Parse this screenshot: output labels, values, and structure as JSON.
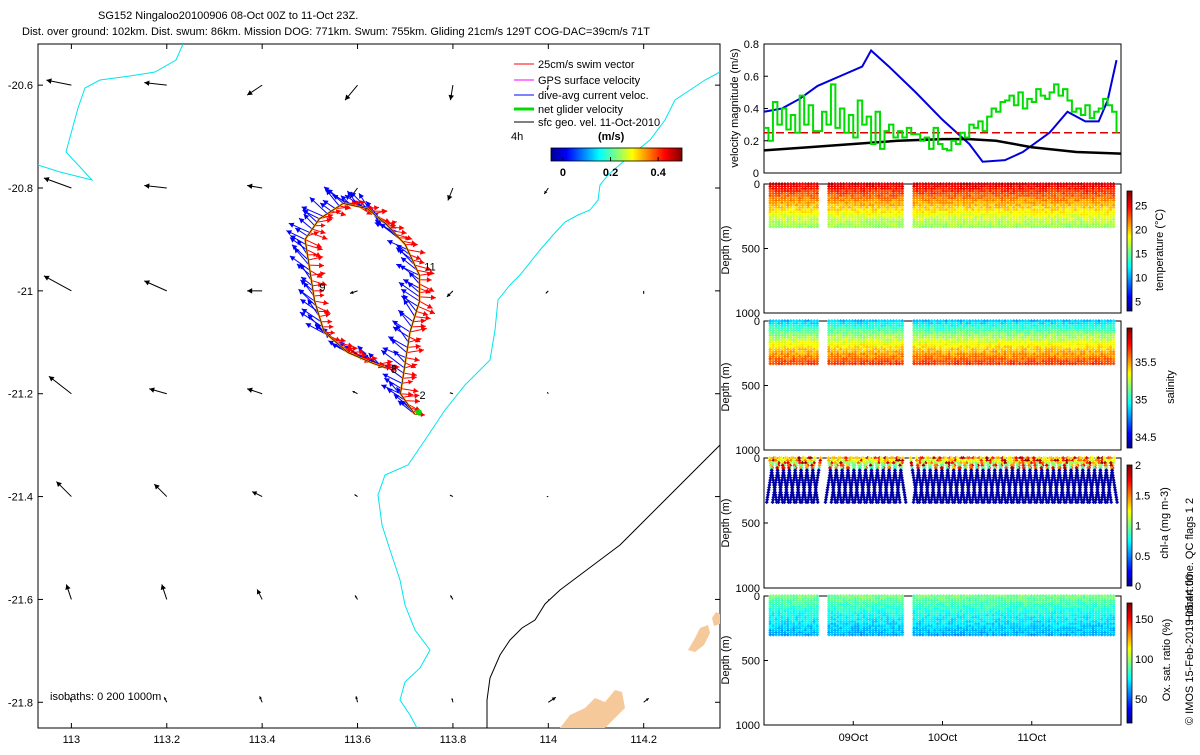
{
  "header": {
    "line1": "SG152 Ningaloo20100906 08-Oct 00Z to 11-Oct 23Z.",
    "line2": "Dist. over ground: 102km. Dist. swum: 86km. Mission DOG: 771km. Swum: 755km. Gliding 21cm/s 129T COG-DAC=39cm/s 71T"
  },
  "colors": {
    "swim": "#ff0000",
    "gps": "#ff00ff",
    "dac": "#0000ff",
    "net": "#00dd00",
    "sfc": "#000000",
    "isobath": "#00e5ee",
    "coast": "#000000",
    "land": "#f6c99b"
  },
  "chart_data": [
    {
      "type": "scatter",
      "subtype": "map-vector",
      "title": "SG152 Ningaloo20100906 08-Oct 00Z to 11-Oct 23Z.",
      "xlim": [
        112.93,
        114.36
      ],
      "ylim": [
        -21.85,
        -20.52
      ],
      "xticks": [
        113,
        113.2,
        113.4,
        113.6,
        113.8,
        114,
        114.2
      ],
      "xtick_labels": [
        "113",
        "113.2",
        "113.4",
        "113.6",
        "113.8",
        "114",
        "114.2"
      ],
      "yticks": [
        -20.6,
        -20.8,
        -21,
        -21.2,
        -21.4,
        -21.6,
        -21.8
      ],
      "ytick_labels": [
        "-20.6",
        "-20.8",
        "-21",
        "-21.2",
        "-21.4",
        "-21.6",
        "-21.8"
      ],
      "legend": {
        "position": "top-right",
        "entries": [
          {
            "label": "25cm/s swim vector",
            "color": "#ff0000"
          },
          {
            "label": "GPS surface velocity",
            "color": "#ff00ff"
          },
          {
            "label": "dive-avg current veloc.",
            "color": "#0000ff"
          },
          {
            "label": "net glider velocity",
            "color": "#00dd00"
          },
          {
            "label": "sfc geo. vel. 11-Oct-2010",
            "color": "#000000"
          }
        ],
        "interval_label": "4h",
        "colorbar_title": "(m/s)",
        "colorbar_ticks": [
          "0",
          "0.2",
          "0.4"
        ],
        "colorbar_range": [
          -0.05,
          0.5
        ]
      },
      "isobaths_label": "isobaths: 0   200  1000m",
      "day_labels": [
        {
          "text": "11",
          "lon": 113.74,
          "lat": -20.96
        },
        {
          "text": "9",
          "lon": 113.52,
          "lat": -21.0
        },
        {
          "text": "8",
          "lon": 113.67,
          "lat": -21.16
        },
        {
          "text": "2",
          "lon": 113.73,
          "lat": -21.21
        }
      ],
      "track": [
        [
          113.72,
          -21.24
        ],
        [
          113.69,
          -21.2
        ],
        [
          113.7,
          -21.14
        ],
        [
          113.71,
          -21.08
        ],
        [
          113.73,
          -21.02
        ],
        [
          113.73,
          -20.97
        ],
        [
          113.7,
          -20.91
        ],
        [
          113.66,
          -20.87
        ],
        [
          113.62,
          -20.84
        ],
        [
          113.57,
          -20.83
        ],
        [
          113.52,
          -20.86
        ],
        [
          113.49,
          -20.9
        ],
        [
          113.5,
          -20.96
        ],
        [
          113.51,
          -21.02
        ],
        [
          113.53,
          -21.08
        ],
        [
          113.58,
          -21.12
        ],
        [
          113.63,
          -21.14
        ],
        [
          113.66,
          -21.15
        ]
      ],
      "sfc_vectors": [
        {
          "lon": 113.0,
          "lat": -20.6,
          "u": -0.5,
          "v": 0.1
        },
        {
          "lon": 113.2,
          "lat": -20.6,
          "u": -0.45,
          "v": 0.05
        },
        {
          "lon": 113.4,
          "lat": -20.6,
          "u": -0.3,
          "v": -0.2
        },
        {
          "lon": 113.6,
          "lat": -20.6,
          "u": -0.25,
          "v": -0.3
        },
        {
          "lon": 113.8,
          "lat": -20.6,
          "u": -0.05,
          "v": -0.3
        },
        {
          "lon": 114.0,
          "lat": -20.6,
          "u": -0.02,
          "v": -0.1
        },
        {
          "lon": 113.0,
          "lat": -20.8,
          "u": -0.55,
          "v": 0.2
        },
        {
          "lon": 113.2,
          "lat": -20.8,
          "u": -0.45,
          "v": 0.05
        },
        {
          "lon": 113.4,
          "lat": -20.8,
          "u": -0.3,
          "v": 0.05
        },
        {
          "lon": 113.6,
          "lat": -20.8,
          "u": -0.15,
          "v": -0.2
        },
        {
          "lon": 113.8,
          "lat": -20.8,
          "u": -0.1,
          "v": -0.25
        },
        {
          "lon": 114.0,
          "lat": -20.8,
          "u": -0.08,
          "v": -0.12
        },
        {
          "lon": 113.0,
          "lat": -21.0,
          "u": -0.55,
          "v": 0.3
        },
        {
          "lon": 113.2,
          "lat": -21.0,
          "u": -0.45,
          "v": 0.2
        },
        {
          "lon": 113.4,
          "lat": -21.0,
          "u": -0.3,
          "v": 0.0
        },
        {
          "lon": 113.6,
          "lat": -21.0,
          "u": -0.15,
          "v": -0.05
        },
        {
          "lon": 113.8,
          "lat": -21.0,
          "u": -0.12,
          "v": -0.12
        },
        {
          "lon": 114.0,
          "lat": -21.0,
          "u": -0.05,
          "v": -0.05
        },
        {
          "lon": 114.2,
          "lat": -21.0,
          "u": 0.0,
          "v": -0.06
        },
        {
          "lon": 113.0,
          "lat": -21.2,
          "u": -0.45,
          "v": 0.35
        },
        {
          "lon": 113.2,
          "lat": -21.2,
          "u": -0.35,
          "v": 0.1
        },
        {
          "lon": 113.4,
          "lat": -21.2,
          "u": -0.3,
          "v": 0.1
        },
        {
          "lon": 113.6,
          "lat": -21.2,
          "u": -0.1,
          "v": 0.05
        },
        {
          "lon": 113.8,
          "lat": -21.2,
          "u": -0.06,
          "v": 0.02
        },
        {
          "lon": 114.0,
          "lat": -21.2,
          "u": -0.02,
          "v": 0.03
        },
        {
          "lon": 113.0,
          "lat": -21.4,
          "u": -0.3,
          "v": 0.3
        },
        {
          "lon": 113.2,
          "lat": -21.4,
          "u": -0.25,
          "v": 0.25
        },
        {
          "lon": 113.4,
          "lat": -21.4,
          "u": -0.2,
          "v": 0.1
        },
        {
          "lon": 113.6,
          "lat": -21.4,
          "u": -0.06,
          "v": 0.04
        },
        {
          "lon": 113.8,
          "lat": -21.4,
          "u": -0.06,
          "v": 0.03
        },
        {
          "lon": 114.0,
          "lat": -21.4,
          "u": -0.03,
          "v": 0.0
        },
        {
          "lon": 113.0,
          "lat": -21.6,
          "u": -0.1,
          "v": 0.3
        },
        {
          "lon": 113.2,
          "lat": -21.6,
          "u": -0.1,
          "v": 0.3
        },
        {
          "lon": 113.4,
          "lat": -21.6,
          "u": -0.1,
          "v": 0.2
        },
        {
          "lon": 113.6,
          "lat": -21.6,
          "u": -0.05,
          "v": 0.08
        },
        {
          "lon": 113.8,
          "lat": -21.6,
          "u": -0.05,
          "v": 0.08
        },
        {
          "lon": 114.0,
          "lat": -21.6,
          "u": 0.02,
          "v": -0.02
        },
        {
          "lon": 113.0,
          "lat": -21.8,
          "u": -0.02,
          "v": 0.08
        },
        {
          "lon": 113.2,
          "lat": -21.8,
          "u": -0.05,
          "v": 0.1
        },
        {
          "lon": 113.4,
          "lat": -21.8,
          "u": -0.05,
          "v": 0.12
        },
        {
          "lon": 113.6,
          "lat": -21.8,
          "u": -0.03,
          "v": 0.12
        },
        {
          "lon": 113.8,
          "lat": -21.8,
          "u": -0.02,
          "v": 0.08
        },
        {
          "lon": 114.0,
          "lat": -21.8,
          "u": 0.15,
          "v": 0.1
        },
        {
          "lon": 114.2,
          "lat": -21.8,
          "u": 0.1,
          "v": 0.08
        }
      ]
    },
    {
      "type": "line",
      "ylabel": "velocity magnitude (m/s)",
      "ylim": [
        0,
        0.8
      ],
      "yticks": [
        "0",
        "0.2",
        "0.4",
        "0.6",
        "0.8"
      ],
      "xlim_days": [
        0,
        4
      ],
      "series": [
        {
          "name": "blue",
          "color": "#0000dd",
          "x": [
            0,
            0.2,
            0.4,
            0.6,
            0.85,
            1.1,
            1.2,
            1.4,
            1.7,
            2.0,
            2.3,
            2.45,
            2.7,
            2.9,
            3.2,
            3.4,
            3.6,
            3.75,
            3.85,
            3.95
          ],
          "y": [
            0.38,
            0.4,
            0.46,
            0.54,
            0.6,
            0.66,
            0.76,
            0.66,
            0.5,
            0.33,
            0.18,
            0.07,
            0.08,
            0.13,
            0.25,
            0.38,
            0.32,
            0.32,
            0.45,
            0.7
          ]
        },
        {
          "name": "black",
          "color": "#000000",
          "x": [
            0,
            0.5,
            1.0,
            1.5,
            2.0,
            2.3,
            2.6,
            3.0,
            3.5,
            4.0
          ],
          "y": [
            0.14,
            0.16,
            0.18,
            0.2,
            0.21,
            0.21,
            0.2,
            0.16,
            0.13,
            0.12
          ]
        },
        {
          "name": "red-dashed",
          "color": "#dd0000",
          "x": [
            0,
            4
          ],
          "y": [
            0.25,
            0.25
          ]
        },
        {
          "name": "green",
          "color": "#00dd00",
          "x": [
            0,
            0.05,
            0.1,
            0.15,
            0.2,
            0.25,
            0.3,
            0.35,
            0.4,
            0.45,
            0.5,
            0.55,
            0.6,
            0.65,
            0.7,
            0.75,
            0.8,
            0.85,
            0.9,
            0.95,
            1.0,
            1.05,
            1.1,
            1.15,
            1.2,
            1.25,
            1.3,
            1.35,
            1.4,
            1.45,
            1.5,
            1.55,
            1.6,
            1.65,
            1.7,
            1.75,
            1.8,
            1.85,
            1.9,
            1.95,
            2.0,
            2.05,
            2.1,
            2.15,
            2.2,
            2.25,
            2.3,
            2.35,
            2.4,
            2.45,
            2.5,
            2.55,
            2.6,
            2.65,
            2.7,
            2.75,
            2.8,
            2.85,
            2.9,
            2.95,
            3.0,
            3.05,
            3.1,
            3.15,
            3.2,
            3.25,
            3.3,
            3.35,
            3.4,
            3.45,
            3.5,
            3.55,
            3.6,
            3.65,
            3.7,
            3.75,
            3.8,
            3.85,
            3.9,
            3.95
          ],
          "y": [
            0.28,
            0.2,
            0.44,
            0.3,
            0.4,
            0.27,
            0.36,
            0.25,
            0.48,
            0.3,
            0.42,
            0.26,
            0.26,
            0.38,
            0.3,
            0.55,
            0.28,
            0.4,
            0.25,
            0.36,
            0.22,
            0.45,
            0.3,
            0.35,
            0.18,
            0.38,
            0.15,
            0.26,
            0.3,
            0.22,
            0.26,
            0.22,
            0.28,
            0.24,
            0.24,
            0.2,
            0.22,
            0.15,
            0.28,
            0.18,
            0.15,
            0.14,
            0.2,
            0.18,
            0.25,
            0.22,
            0.3,
            0.28,
            0.32,
            0.26,
            0.35,
            0.4,
            0.38,
            0.44,
            0.45,
            0.48,
            0.42,
            0.5,
            0.4,
            0.46,
            0.44,
            0.52,
            0.48,
            0.46,
            0.5,
            0.55,
            0.48,
            0.52,
            0.45,
            0.38,
            0.4,
            0.36,
            0.42,
            0.34,
            0.38,
            0.4,
            0.46,
            0.42,
            0.38,
            0.25
          ]
        }
      ]
    },
    {
      "type": "heatmap",
      "ylabel": "Depth (m)",
      "ylim": [
        0,
        1000
      ],
      "yticks": [
        "0",
        "500",
        "1000"
      ],
      "colorbar_label": "temperature (°C)",
      "colorbar_ticks": [
        "5",
        "10",
        "15",
        "20",
        "25"
      ],
      "crange": [
        3,
        28
      ],
      "profile_depth": 330,
      "top_value": 26,
      "bottom_value": 16
    },
    {
      "type": "heatmap",
      "ylabel": "Depth (m)",
      "ylim": [
        0,
        1000
      ],
      "yticks": [
        "0",
        "500",
        "1000"
      ],
      "colorbar_label": "salinity",
      "colorbar_ticks": [
        "34.5",
        "35",
        "35.5"
      ],
      "crange": [
        34.35,
        35.95
      ],
      "profile_depth": 330,
      "top_value": 34.85,
      "bottom_value": 35.65
    },
    {
      "type": "heatmap",
      "ylabel": "Depth (m)",
      "ylim": [
        0,
        1000
      ],
      "yticks": [
        "0",
        "500",
        "1000"
      ],
      "colorbar_label": "chl-a (mg m-3)",
      "colorbar_ticks": [
        "0",
        "0.5",
        "1",
        "1.5",
        "2"
      ],
      "crange": [
        0,
        2
      ],
      "profile_depth": 340,
      "top_value": 1.3,
      "bottom_value": 0.05
    },
    {
      "type": "heatmap",
      "ylabel": "Depth (m)",
      "ylim": [
        0,
        1000
      ],
      "yticks": [
        "0",
        "500",
        "1000"
      ],
      "colorbar_label": "Ox. sat. ratio (%)",
      "colorbar_ticks": [
        "50",
        "100",
        "150"
      ],
      "crange": [
        20,
        170
      ],
      "profile_depth": 300,
      "top_value": 95,
      "bottom_value": 65,
      "xtick_labels": [
        "09Oct",
        "10Oct",
        "11Oct"
      ],
      "xticks_days": [
        1,
        2,
        3
      ]
    }
  ],
  "gaps_days": [
    [
      0.62,
      0.7
    ],
    [
      1.58,
      1.66
    ]
  ],
  "qc_note": "Hobart time. QC flags 1  2",
  "copyright": "© IMOS 15-Feb-2019 05:44:00"
}
